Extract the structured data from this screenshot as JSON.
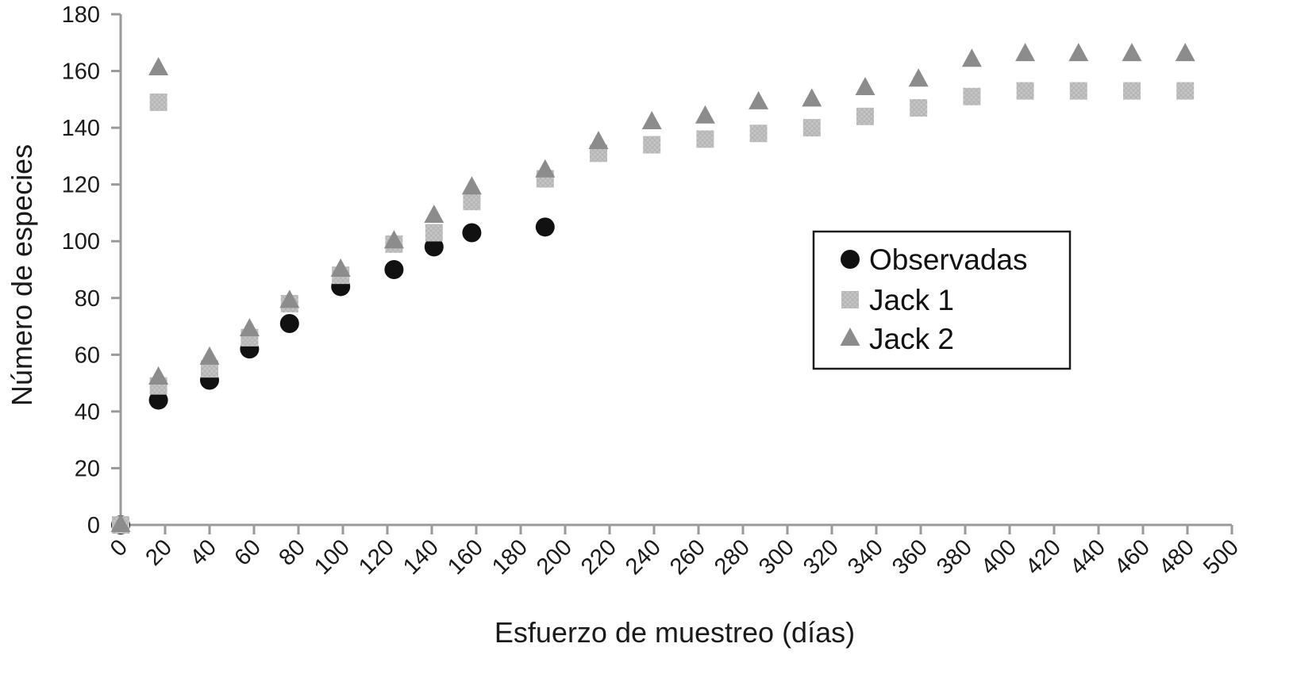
{
  "chart_data": {
    "type": "scatter",
    "title": "",
    "xlabel": "Esfuerzo de muestreo (días)",
    "ylabel": "Número de especies",
    "xlim": [
      0,
      500
    ],
    "ylim": [
      0,
      180
    ],
    "xticks": [
      0,
      20,
      40,
      60,
      80,
      100,
      120,
      140,
      160,
      180,
      200,
      220,
      240,
      260,
      280,
      300,
      320,
      340,
      360,
      380,
      400,
      420,
      440,
      460,
      480,
      500
    ],
    "yticks": [
      0,
      20,
      40,
      60,
      80,
      100,
      120,
      140,
      160,
      180
    ],
    "grid": false,
    "legend_position": "center-right",
    "series": [
      {
        "name": "Observadas",
        "marker": "circle",
        "color": "#111111",
        "points": [
          [
            0,
            0
          ],
          [
            17,
            44
          ],
          [
            40,
            51
          ],
          [
            58,
            62
          ],
          [
            76,
            71
          ],
          [
            99,
            84
          ],
          [
            123,
            90
          ],
          [
            141,
            98
          ],
          [
            158,
            103
          ],
          [
            191,
            105
          ]
        ]
      },
      {
        "name": "Jack 1",
        "marker": "square",
        "color": "#c4c4c4",
        "points": [
          [
            0,
            0
          ],
          [
            17,
            49
          ],
          [
            17,
            149
          ],
          [
            40,
            55
          ],
          [
            58,
            66
          ],
          [
            76,
            78
          ],
          [
            99,
            88
          ],
          [
            123,
            99
          ],
          [
            141,
            103
          ],
          [
            158,
            114
          ],
          [
            191,
            122
          ],
          [
            215,
            131
          ],
          [
            239,
            134
          ],
          [
            263,
            136
          ],
          [
            287,
            138
          ],
          [
            311,
            140
          ],
          [
            335,
            144
          ],
          [
            359,
            147
          ],
          [
            383,
            151
          ],
          [
            407,
            153
          ],
          [
            431,
            153
          ],
          [
            455,
            153
          ],
          [
            479,
            153
          ]
        ]
      },
      {
        "name": "Jack 2",
        "marker": "triangle",
        "color": "#8c8c8c",
        "points": [
          [
            0,
            0
          ],
          [
            17,
            52
          ],
          [
            17,
            161
          ],
          [
            40,
            59
          ],
          [
            58,
            69
          ],
          [
            76,
            79
          ],
          [
            99,
            90
          ],
          [
            123,
            100
          ],
          [
            141,
            109
          ],
          [
            158,
            119
          ],
          [
            191,
            125
          ],
          [
            215,
            135
          ],
          [
            239,
            142
          ],
          [
            263,
            144
          ],
          [
            287,
            149
          ],
          [
            311,
            150
          ],
          [
            335,
            154
          ],
          [
            359,
            157
          ],
          [
            383,
            164
          ],
          [
            407,
            166
          ],
          [
            431,
            166
          ],
          [
            455,
            166
          ],
          [
            479,
            166
          ]
        ]
      }
    ]
  }
}
